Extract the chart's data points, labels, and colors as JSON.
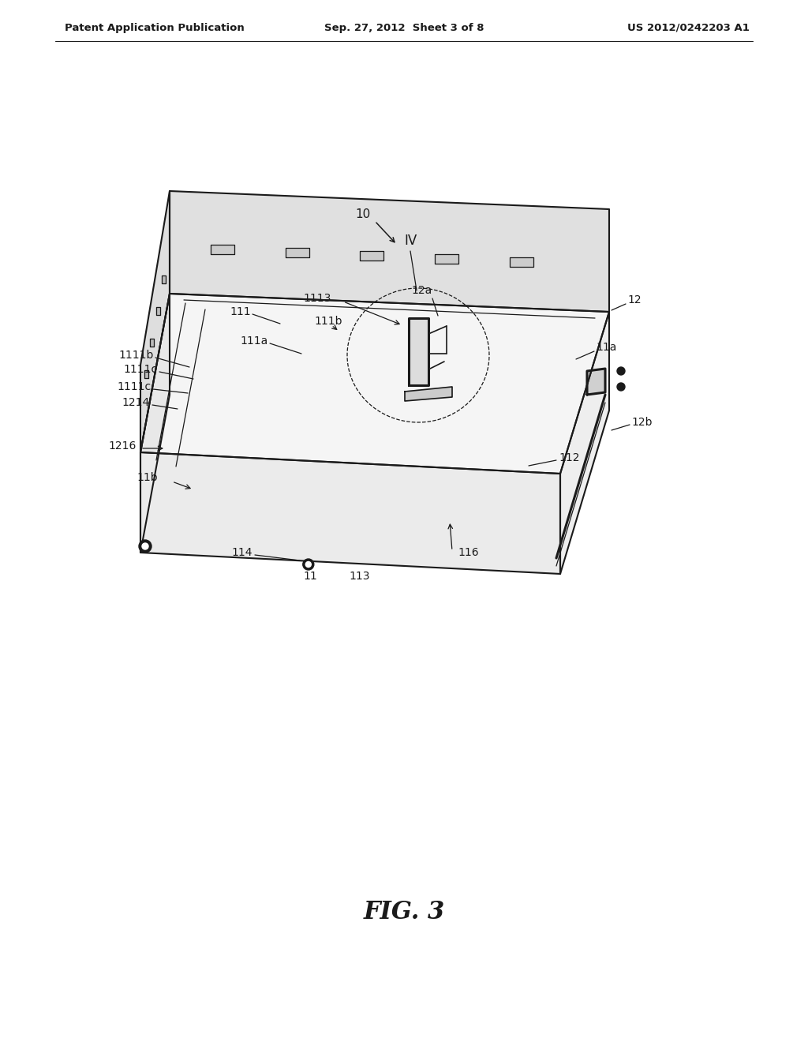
{
  "bg_color": "#ffffff",
  "line_color": "#1a1a1a",
  "header_left": "Patent Application Publication",
  "header_center": "Sep. 27, 2012  Sheet 3 of 8",
  "header_right": "US 2012/0242203 A1",
  "caption": "FIG. 3"
}
